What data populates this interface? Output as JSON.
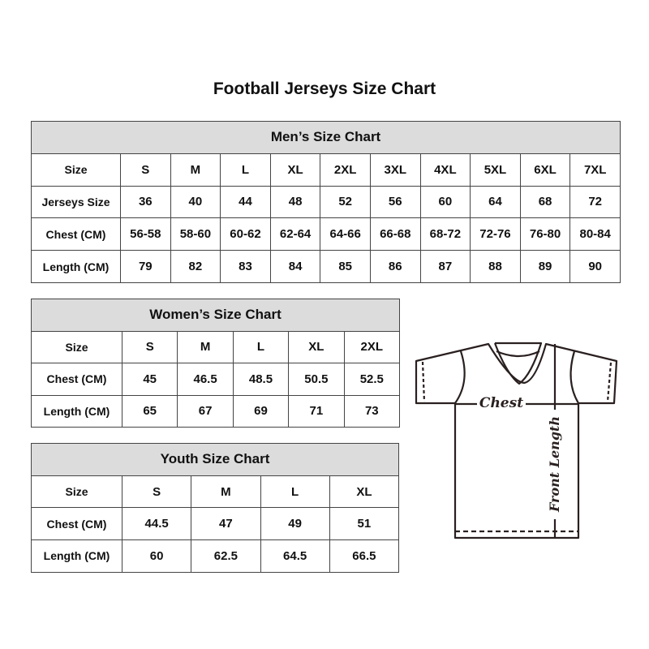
{
  "title": "Football Jerseys Size Chart",
  "men": {
    "heading": "Men’s Size Chart",
    "rows": [
      {
        "label": "Size",
        "values": [
          "S",
          "M",
          "L",
          "XL",
          "2XL",
          "3XL",
          "4XL",
          "5XL",
          "6XL",
          "7XL"
        ]
      },
      {
        "label": "Jerseys Size",
        "values": [
          "36",
          "40",
          "44",
          "48",
          "52",
          "56",
          "60",
          "64",
          "68",
          "72"
        ]
      },
      {
        "label": "Chest (CM)",
        "values": [
          "56-58",
          "58-60",
          "60-62",
          "62-64",
          "64-66",
          "66-68",
          "68-72",
          "72-76",
          "76-80",
          "80-84"
        ]
      },
      {
        "label": "Length (CM)",
        "values": [
          "79",
          "82",
          "83",
          "84",
          "85",
          "86",
          "87",
          "88",
          "89",
          "90"
        ]
      }
    ]
  },
  "women": {
    "heading": "Women’s Size Chart",
    "rows": [
      {
        "label": "Size",
        "values": [
          "S",
          "M",
          "L",
          "XL",
          "2XL"
        ]
      },
      {
        "label": "Chest (CM)",
        "values": [
          "45",
          "46.5",
          "48.5",
          "50.5",
          "52.5"
        ]
      },
      {
        "label": "Length (CM)",
        "values": [
          "65",
          "67",
          "69",
          "71",
          "73"
        ]
      }
    ]
  },
  "youth": {
    "heading": "Youth Size Chart",
    "rows": [
      {
        "label": "Size",
        "values": [
          "S",
          "M",
          "L",
          "XL"
        ]
      },
      {
        "label": "Chest (CM)",
        "values": [
          "44.5",
          "47",
          "49",
          "51"
        ]
      },
      {
        "label": "Length (CM)",
        "values": [
          "60",
          "62.5",
          "64.5",
          "66.5"
        ]
      }
    ]
  },
  "diagram": {
    "chest_label": "Chest",
    "length_label": "Front Length"
  },
  "colors": {
    "header_bg": "#dcdcdc",
    "border": "#444444",
    "outline": "#2a2020"
  }
}
